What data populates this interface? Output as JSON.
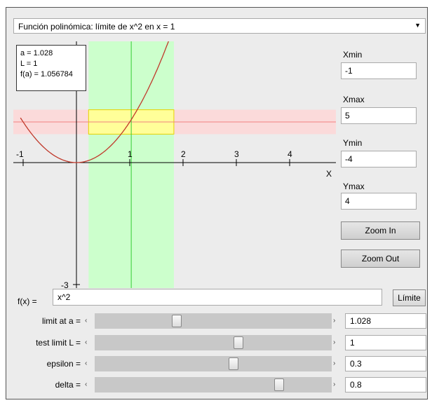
{
  "dropdown": {
    "value": "Función polinómica:  límite de x^2 en x = 1",
    "arrow_icon": "dropdown-arrow-icon"
  },
  "info": {
    "a_line": "a = 1.028",
    "l_line": "L = 1",
    "fa_line": "f(a) = 1.056784"
  },
  "axes": {
    "x_ticks": [
      "-1",
      "1",
      "2",
      "3",
      "4"
    ],
    "x_label": "X",
    "y_tick": "-3"
  },
  "plot_values": {
    "xmin": -1,
    "xmax": 5,
    "ymin": -4,
    "ymax": 4,
    "a": 1.028,
    "L": 1,
    "epsilon": 0.3,
    "delta": 0.8,
    "function": "x^2"
  },
  "window": {
    "xmin_label": "Xmin",
    "xmin_value": "-1",
    "xmax_label": "Xmax",
    "xmax_value": "5",
    "ymin_label": "Ymin",
    "ymin_value": "-4",
    "ymax_label": "Ymax",
    "ymax_value": "4",
    "zoom_in": "Zoom In",
    "zoom_out": "Zoom Out"
  },
  "function": {
    "label": "f(x) =",
    "value": "x^2",
    "button": "Límite"
  },
  "sliders": [
    {
      "label": "limit at a =",
      "value": "1.028",
      "fraction": 0.34
    },
    {
      "label": "test limit L =",
      "value": "1",
      "fraction": 0.61
    },
    {
      "label": "epsilon =",
      "value": "0.3",
      "fraction": 0.59
    },
    {
      "label": "delta =",
      "value": "0.8",
      "fraction": 0.79
    }
  ],
  "colors": {
    "curve": "#c0392b",
    "delta_band": "#ccffcc",
    "epsilon_band": "#ffd6d6",
    "box": "#ffff99",
    "vline": "#33cc33"
  }
}
